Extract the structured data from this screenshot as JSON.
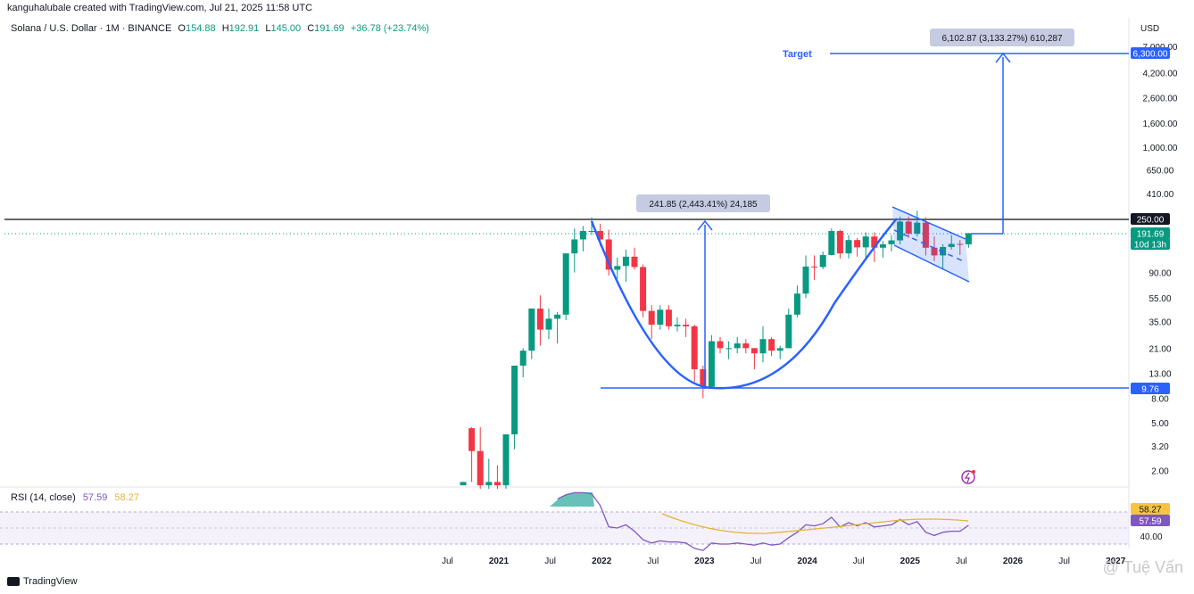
{
  "header": {
    "credit": "kanguhalubale created with TradingView.com, Jul 21, 2025 11:58 UTC",
    "symbol": "Solana / U.S. Dollar · 1M · BINANCE",
    "open_label": "O",
    "open": "154.88",
    "high_label": "H",
    "high": "192.91",
    "low_label": "L",
    "low": "145.00",
    "close_label": "C",
    "close": "191.69",
    "change": "+36.78 (+23.74%)"
  },
  "rsi": {
    "label": "RSI (14, close)",
    "value": "57.59",
    "ma": "58.27"
  },
  "footer": {
    "logo": "TradingView",
    "watermark": "@ Tuệ Vấn"
  },
  "colors": {
    "up": "#089981",
    "down": "#f23645",
    "drawing": "#2962ff",
    "rsi_line": "#7e57c2",
    "rsi_ma": "#e6b33a"
  },
  "chart_data": {
    "type": "candlestick",
    "currency": "USD",
    "y_scale": "log",
    "ylim": [
      1.6,
      8000
    ],
    "x_ticks": [
      "Jul",
      "2021",
      "Jul",
      "2022",
      "Jul",
      "2023",
      "Jul",
      "2024",
      "Jul",
      "2025",
      "Jul",
      "2026",
      "Jul",
      "2027"
    ],
    "y_ticks": [
      "7,000.00",
      "4,200.00",
      "2,600.00",
      "1,600.00",
      "1,000.00",
      "650.00",
      "410.00",
      "90.00",
      "55.00",
      "35.00",
      "21.00",
      "13.00",
      "8.00",
      "5.00",
      "3.20",
      "2.00"
    ],
    "price_labels": [
      {
        "text": "6,300.00",
        "value": 6300,
        "style": "target"
      },
      {
        "text": "250.00",
        "value": 250,
        "style": "resistance"
      },
      {
        "text": "191.69",
        "value": 191.69,
        "style": "last"
      },
      {
        "text": "10d 13h",
        "value": 160,
        "style": "countdown"
      },
      {
        "text": "9.76",
        "value": 9.76,
        "style": "support"
      }
    ],
    "annotations": [
      {
        "text": "6,102.87 (3,133.27%) 610,287"
      },
      {
        "text": "241.85 (2,443.41%) 24,185"
      },
      {
        "text": "Target"
      }
    ],
    "candles": [
      {
        "date": "2020-08",
        "o": 1.5,
        "h": 1.6,
        "l": 1.5,
        "c": 1.6
      },
      {
        "date": "2020-09",
        "o": 4.5,
        "h": 4.6,
        "l": 1.6,
        "c": 2.9
      },
      {
        "date": "2020-10",
        "o": 2.9,
        "h": 4.6,
        "l": 1.4,
        "c": 1.5
      },
      {
        "date": "2020-11",
        "o": 1.5,
        "h": 2.5,
        "l": 1.4,
        "c": 1.6
      },
      {
        "date": "2020-12",
        "o": 1.6,
        "h": 2.2,
        "l": 1.4,
        "c": 1.5
      },
      {
        "date": "2021-01",
        "o": 1.5,
        "h": 4.0,
        "l": 1.4,
        "c": 4.0
      },
      {
        "date": "2021-02",
        "o": 4.0,
        "h": 15,
        "l": 3.0,
        "c": 15
      },
      {
        "date": "2021-03",
        "o": 15,
        "h": 21,
        "l": 12,
        "c": 20
      },
      {
        "date": "2021-04",
        "o": 20,
        "h": 45,
        "l": 17,
        "c": 45
      },
      {
        "date": "2021-05",
        "o": 45,
        "h": 58,
        "l": 22,
        "c": 30
      },
      {
        "date": "2021-06",
        "o": 30,
        "h": 45,
        "l": 25,
        "c": 37
      },
      {
        "date": "2021-07",
        "o": 37,
        "h": 42,
        "l": 23,
        "c": 40
      },
      {
        "date": "2021-08",
        "o": 40,
        "h": 130,
        "l": 36,
        "c": 130
      },
      {
        "date": "2021-09",
        "o": 130,
        "h": 210,
        "l": 90,
        "c": 170
      },
      {
        "date": "2021-10",
        "o": 170,
        "h": 220,
        "l": 135,
        "c": 200
      },
      {
        "date": "2021-11",
        "o": 200,
        "h": 260,
        "l": 185,
        "c": 200
      },
      {
        "date": "2021-12",
        "o": 200,
        "h": 230,
        "l": 150,
        "c": 170
      },
      {
        "date": "2022-01",
        "o": 170,
        "h": 205,
        "l": 85,
        "c": 95
      },
      {
        "date": "2022-02",
        "o": 95,
        "h": 120,
        "l": 80,
        "c": 102
      },
      {
        "date": "2022-03",
        "o": 102,
        "h": 140,
        "l": 75,
        "c": 122
      },
      {
        "date": "2022-04",
        "o": 122,
        "h": 145,
        "l": 95,
        "c": 100
      },
      {
        "date": "2022-05",
        "o": 100,
        "h": 105,
        "l": 38,
        "c": 43
      },
      {
        "date": "2022-06",
        "o": 43,
        "h": 48,
        "l": 25,
        "c": 33
      },
      {
        "date": "2022-07",
        "o": 33,
        "h": 48,
        "l": 30,
        "c": 44
      },
      {
        "date": "2022-08",
        "o": 44,
        "h": 48,
        "l": 30,
        "c": 32
      },
      {
        "date": "2022-09",
        "o": 32,
        "h": 38,
        "l": 29,
        "c": 33
      },
      {
        "date": "2022-10",
        "o": 33,
        "h": 37,
        "l": 26,
        "c": 32
      },
      {
        "date": "2022-11",
        "o": 32,
        "h": 33,
        "l": 11,
        "c": 14
      },
      {
        "date": "2022-12",
        "o": 14,
        "h": 15,
        "l": 8.0,
        "c": 10
      },
      {
        "date": "2023-01",
        "o": 10,
        "h": 27,
        "l": 9.8,
        "c": 24
      },
      {
        "date": "2023-02",
        "o": 24,
        "h": 26,
        "l": 19,
        "c": 21
      },
      {
        "date": "2023-03",
        "o": 21,
        "h": 24,
        "l": 17,
        "c": 21
      },
      {
        "date": "2023-04",
        "o": 21,
        "h": 26,
        "l": 19,
        "c": 23
      },
      {
        "date": "2023-05",
        "o": 23,
        "h": 25,
        "l": 19,
        "c": 21
      },
      {
        "date": "2023-06",
        "o": 21,
        "h": 21,
        "l": 14,
        "c": 19
      },
      {
        "date": "2023-07",
        "o": 19,
        "h": 32,
        "l": 16,
        "c": 25
      },
      {
        "date": "2023-08",
        "o": 25,
        "h": 26,
        "l": 18,
        "c": 20
      },
      {
        "date": "2023-09",
        "o": 20,
        "h": 22,
        "l": 17,
        "c": 21
      },
      {
        "date": "2023-10",
        "o": 21,
        "h": 45,
        "l": 21,
        "c": 40
      },
      {
        "date": "2023-11",
        "o": 40,
        "h": 70,
        "l": 38,
        "c": 60
      },
      {
        "date": "2023-12",
        "o": 60,
        "h": 125,
        "l": 55,
        "c": 101
      },
      {
        "date": "2024-01",
        "o": 101,
        "h": 125,
        "l": 78,
        "c": 100
      },
      {
        "date": "2024-02",
        "o": 100,
        "h": 135,
        "l": 96,
        "c": 126
      },
      {
        "date": "2024-03",
        "o": 126,
        "h": 210,
        "l": 125,
        "c": 200
      },
      {
        "date": "2024-04",
        "o": 200,
        "h": 205,
        "l": 118,
        "c": 130
      },
      {
        "date": "2024-05",
        "o": 130,
        "h": 185,
        "l": 118,
        "c": 168
      },
      {
        "date": "2024-06",
        "o": 168,
        "h": 175,
        "l": 122,
        "c": 146
      },
      {
        "date": "2024-07",
        "o": 146,
        "h": 195,
        "l": 120,
        "c": 180
      },
      {
        "date": "2024-08",
        "o": 180,
        "h": 195,
        "l": 110,
        "c": 145
      },
      {
        "date": "2024-09",
        "o": 145,
        "h": 165,
        "l": 120,
        "c": 155
      },
      {
        "date": "2024-10",
        "o": 155,
        "h": 185,
        "l": 135,
        "c": 167
      },
      {
        "date": "2024-11",
        "o": 167,
        "h": 264,
        "l": 155,
        "c": 240
      },
      {
        "date": "2024-12",
        "o": 240,
        "h": 264,
        "l": 175,
        "c": 190
      },
      {
        "date": "2025-01",
        "o": 190,
        "h": 295,
        "l": 180,
        "c": 235
      },
      {
        "date": "2025-02",
        "o": 235,
        "h": 260,
        "l": 125,
        "c": 145
      },
      {
        "date": "2025-03",
        "o": 145,
        "h": 180,
        "l": 112,
        "c": 125
      },
      {
        "date": "2025-04",
        "o": 125,
        "h": 155,
        "l": 95,
        "c": 147
      },
      {
        "date": "2025-05",
        "o": 147,
        "h": 185,
        "l": 140,
        "c": 156
      },
      {
        "date": "2025-06",
        "o": 156,
        "h": 168,
        "l": 126,
        "c": 155
      },
      {
        "date": "2025-07",
        "o": 154.88,
        "h": 192.91,
        "l": 145.0,
        "c": 191.69
      }
    ],
    "rsi_series": [
      {
        "date": "2021-07",
        "rsi": 82
      },
      {
        "date": "2021-08",
        "rsi": 86
      },
      {
        "date": "2021-09",
        "rsi": 88
      },
      {
        "date": "2021-10",
        "rsi": 88
      },
      {
        "date": "2021-11",
        "rsi": 87
      },
      {
        "date": "2021-12",
        "rsi": 76
      },
      {
        "date": "2022-01",
        "rsi": 56
      },
      {
        "date": "2022-02",
        "rsi": 55
      },
      {
        "date": "2022-03",
        "rsi": 58
      },
      {
        "date": "2022-04",
        "rsi": 52
      },
      {
        "date": "2022-05",
        "rsi": 44
      },
      {
        "date": "2022-06",
        "rsi": 41
      },
      {
        "date": "2022-07",
        "rsi": 43
      },
      {
        "date": "2022-08",
        "rsi": 42
      },
      {
        "date": "2022-09",
        "rsi": 42
      },
      {
        "date": "2022-10",
        "rsi": 41
      },
      {
        "date": "2022-11",
        "rsi": 36
      },
      {
        "date": "2022-12",
        "rsi": 34
      },
      {
        "date": "2023-01",
        "rsi": 41
      },
      {
        "date": "2023-02",
        "rsi": 40
      },
      {
        "date": "2023-03",
        "rsi": 40
      },
      {
        "date": "2023-04",
        "rsi": 41
      },
      {
        "date": "2023-05",
        "rsi": 40
      },
      {
        "date": "2023-06",
        "rsi": 39
      },
      {
        "date": "2023-07",
        "rsi": 41
      },
      {
        "date": "2023-08",
        "rsi": 39
      },
      {
        "date": "2023-09",
        "rsi": 40
      },
      {
        "date": "2023-10",
        "rsi": 46
      },
      {
        "date": "2023-11",
        "rsi": 51
      },
      {
        "date": "2023-12",
        "rsi": 58
      },
      {
        "date": "2024-01",
        "rsi": 57
      },
      {
        "date": "2024-02",
        "rsi": 59
      },
      {
        "date": "2024-03",
        "rsi": 65
      },
      {
        "date": "2024-04",
        "rsi": 56
      },
      {
        "date": "2024-05",
        "rsi": 60
      },
      {
        "date": "2024-06",
        "rsi": 57
      },
      {
        "date": "2024-07",
        "rsi": 60
      },
      {
        "date": "2024-08",
        "rsi": 56
      },
      {
        "date": "2024-09",
        "rsi": 57
      },
      {
        "date": "2024-10",
        "rsi": 58
      },
      {
        "date": "2024-11",
        "rsi": 63
      },
      {
        "date": "2024-12",
        "rsi": 58
      },
      {
        "date": "2025-01",
        "rsi": 61
      },
      {
        "date": "2025-02",
        "rsi": 51
      },
      {
        "date": "2025-03",
        "rsi": 48
      },
      {
        "date": "2025-04",
        "rsi": 51
      },
      {
        "date": "2025-05",
        "rsi": 52
      },
      {
        "date": "2025-06",
        "rsi": 52
      },
      {
        "date": "2025-07",
        "rsi": 57.59
      }
    ],
    "rsi_ticks": [
      "40.00"
    ],
    "rsi_labels": [
      {
        "text": "58.27",
        "value": 58.27
      },
      {
        "text": "57.59",
        "value": 57.59
      }
    ]
  }
}
